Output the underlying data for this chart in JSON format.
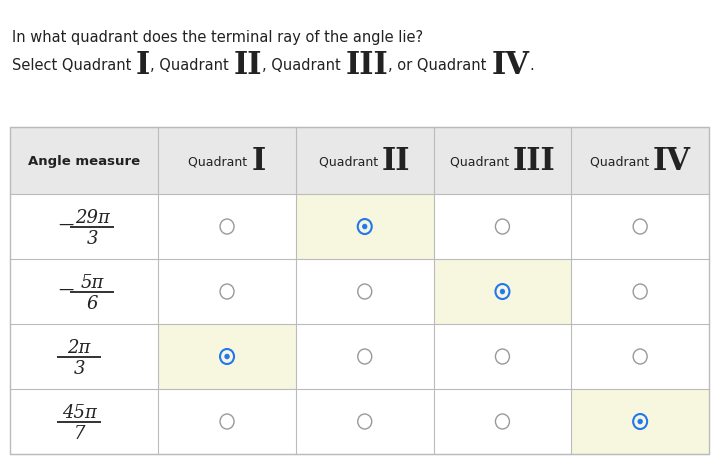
{
  "title_line1": "In what quadrant does the terminal ray of the angle lie?",
  "select_parts": [
    [
      "Select Quadrant ",
      10.5,
      "normal",
      "sans-serif"
    ],
    [
      "I",
      22,
      "bold",
      "serif"
    ],
    [
      ", Quadrant ",
      10.5,
      "normal",
      "sans-serif"
    ],
    [
      "II",
      22,
      "bold",
      "serif"
    ],
    [
      ", Quadrant ",
      10.5,
      "normal",
      "sans-serif"
    ],
    [
      "III",
      22,
      "bold",
      "serif"
    ],
    [
      ", or Quadrant ",
      10.5,
      "normal",
      "sans-serif"
    ],
    [
      "IV",
      22,
      "bold",
      "serif"
    ],
    [
      ".",
      10.5,
      "normal",
      "sans-serif"
    ]
  ],
  "col_header_parts": [
    [
      [
        "Quadrant ",
        9,
        "normal",
        "sans-serif"
      ],
      [
        "I",
        22,
        "bold",
        "serif"
      ]
    ],
    [
      [
        "Quadrant ",
        9,
        "normal",
        "sans-serif"
      ],
      [
        "II",
        22,
        "bold",
        "serif"
      ]
    ],
    [
      [
        "Quadrant ",
        9,
        "normal",
        "sans-serif"
      ],
      [
        "III",
        22,
        "bold",
        "serif"
      ]
    ],
    [
      [
        "Quadrant ",
        9,
        "normal",
        "sans-serif"
      ],
      [
        "IV",
        22,
        "bold",
        "serif"
      ]
    ]
  ],
  "rows": [
    {
      "num": "29π",
      "den": "3",
      "sign": true,
      "selected": 1
    },
    {
      "num": "5π",
      "den": "6",
      "sign": true,
      "selected": 2
    },
    {
      "num": "2π",
      "den": "3",
      "sign": false,
      "selected": 0
    },
    {
      "num": "45π",
      "den": "7",
      "sign": false,
      "selected": 3
    }
  ],
  "highlight_color": "#f7f7e0",
  "header_bg": "#e8e8e8",
  "border_color": "#bbbbbb",
  "radio_sel_color": "#2277ee",
  "radio_empty_color": "#999999",
  "text_color": "#222222",
  "bg_color": "#ffffff",
  "fig_w": 7.19,
  "fig_h": 4.6,
  "dpi": 100
}
